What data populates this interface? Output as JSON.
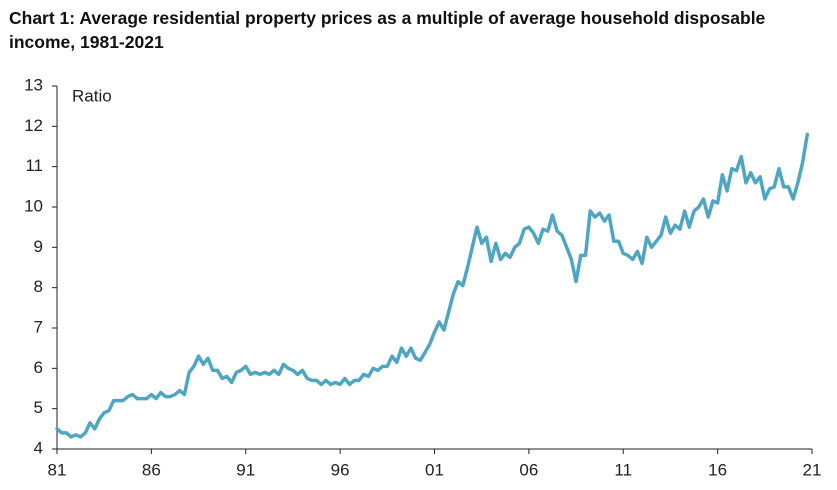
{
  "chart_data": {
    "type": "line",
    "title": "Chart 1: Average residential property prices as a multiple of average household disposable income, 1981-2021",
    "ylabel": "Ratio",
    "color": "#4ea6c1",
    "x": [
      1981,
      1981.25,
      1981.5,
      1981.75,
      1982,
      1982.25,
      1982.5,
      1982.75,
      1983,
      1983.25,
      1983.5,
      1983.75,
      1984,
      1984.25,
      1984.5,
      1984.75,
      1985,
      1985.25,
      1985.5,
      1985.75,
      1986,
      1986.25,
      1986.5,
      1986.75,
      1987,
      1987.25,
      1987.5,
      1987.75,
      1988,
      1988.25,
      1988.5,
      1988.75,
      1989,
      1989.25,
      1989.5,
      1989.75,
      1990,
      1990.25,
      1990.5,
      1990.75,
      1991,
      1991.25,
      1991.5,
      1991.75,
      1992,
      1992.25,
      1992.5,
      1992.75,
      1993,
      1993.25,
      1993.5,
      1993.75,
      1994,
      1994.25,
      1994.5,
      1994.75,
      1995,
      1995.25,
      1995.5,
      1995.75,
      1996,
      1996.25,
      1996.5,
      1996.75,
      1997,
      1997.25,
      1997.5,
      1997.75,
      1998,
      1998.25,
      1998.5,
      1998.75,
      1999,
      1999.25,
      1999.5,
      1999.75,
      2000,
      2000.25,
      2000.5,
      2000.75,
      2001,
      2001.25,
      2001.5,
      2001.75,
      2002,
      2002.25,
      2002.5,
      2002.75,
      2003,
      2003.25,
      2003.5,
      2003.75,
      2004,
      2004.25,
      2004.5,
      2004.75,
      2005,
      2005.25,
      2005.5,
      2005.75,
      2006,
      2006.25,
      2006.5,
      2006.75,
      2007,
      2007.25,
      2007.5,
      2007.75,
      2008,
      2008.25,
      2008.5,
      2008.75,
      2009,
      2009.25,
      2009.5,
      2009.75,
      2010,
      2010.25,
      2010.5,
      2010.75,
      2011,
      2011.25,
      2011.5,
      2011.75,
      2012,
      2012.25,
      2012.5,
      2012.75,
      2013,
      2013.25,
      2013.5,
      2013.75,
      2014,
      2014.25,
      2014.5,
      2014.75,
      2015,
      2015.25,
      2015.5,
      2015.75,
      2016,
      2016.25,
      2016.5,
      2016.75,
      2017,
      2017.25,
      2017.5,
      2017.75,
      2018,
      2018.25,
      2018.5,
      2018.75,
      2019,
      2019.25,
      2019.5,
      2019.75,
      2020,
      2020.25,
      2020.5,
      2020.75
    ],
    "values": [
      4.5,
      4.4,
      4.4,
      4.3,
      4.35,
      4.3,
      4.4,
      4.65,
      4.5,
      4.75,
      4.9,
      4.95,
      5.2,
      5.2,
      5.2,
      5.3,
      5.35,
      5.25,
      5.25,
      5.25,
      5.35,
      5.25,
      5.4,
      5.3,
      5.3,
      5.35,
      5.45,
      5.35,
      5.9,
      6.05,
      6.3,
      6.1,
      6.25,
      5.95,
      5.95,
      5.75,
      5.8,
      5.65,
      5.9,
      5.95,
      6.05,
      5.85,
      5.9,
      5.85,
      5.9,
      5.85,
      5.95,
      5.85,
      6.1,
      6.0,
      5.95,
      5.85,
      5.95,
      5.75,
      5.7,
      5.7,
      5.6,
      5.7,
      5.6,
      5.65,
      5.6,
      5.75,
      5.6,
      5.7,
      5.7,
      5.85,
      5.8,
      6.0,
      5.95,
      6.05,
      6.05,
      6.3,
      6.15,
      6.5,
      6.3,
      6.5,
      6.25,
      6.2,
      6.4,
      6.6,
      6.9,
      7.15,
      6.95,
      7.4,
      7.85,
      8.15,
      8.05,
      8.5,
      9.0,
      9.5,
      9.1,
      9.25,
      8.65,
      9.1,
      8.7,
      8.85,
      8.75,
      9.0,
      9.1,
      9.45,
      9.5,
      9.35,
      9.1,
      9.45,
      9.4,
      9.8,
      9.4,
      9.3,
      9.0,
      8.7,
      8.15,
      8.8,
      8.8,
      9.9,
      9.75,
      9.85,
      9.65,
      9.8,
      9.15,
      9.15,
      8.85,
      8.8,
      8.7,
      8.9,
      8.6,
      9.25,
      9.0,
      9.15,
      9.3,
      9.75,
      9.35,
      9.55,
      9.45,
      9.9,
      9.5,
      9.9,
      10.0,
      10.2,
      9.75,
      10.15,
      10.1,
      10.8,
      10.4,
      10.95,
      10.9,
      11.25,
      10.6,
      10.85,
      10.6,
      10.75,
      10.2,
      10.45,
      10.5,
      10.95,
      10.5,
      10.5,
      10.2,
      10.6,
      11.1,
      11.8
    ],
    "xlim": [
      1981,
      2021
    ],
    "xticks": [
      {
        "value": 1981,
        "label": "81"
      },
      {
        "value": 1986,
        "label": "86"
      },
      {
        "value": 1991,
        "label": "91"
      },
      {
        "value": 1996,
        "label": "96"
      },
      {
        "value": 2001,
        "label": "01"
      },
      {
        "value": 2006,
        "label": "06"
      },
      {
        "value": 2011,
        "label": "11"
      },
      {
        "value": 2016,
        "label": "16"
      },
      {
        "value": 2021,
        "label": "21"
      }
    ],
    "ylim": [
      4,
      13
    ],
    "yticks": [
      4,
      5,
      6,
      7,
      8,
      9,
      10,
      11,
      12,
      13
    ],
    "grid": false
  }
}
